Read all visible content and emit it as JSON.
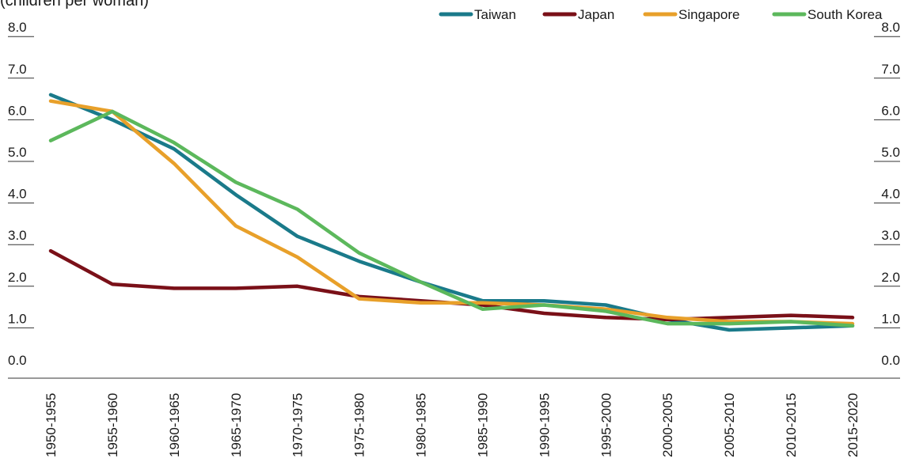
{
  "chart_data": {
    "type": "line",
    "unit_label": "(children per woman)",
    "categories": [
      "1950-1955",
      "1955-1960",
      "1960-1965",
      "1965-1970",
      "1970-1975",
      "1975-1980",
      "1980-1985",
      "1985-1990",
      "1990-1995",
      "1995-2000",
      "2000-2005",
      "2005-2010",
      "2010-2015",
      "2015-2020"
    ],
    "series": [
      {
        "name": "Taiwan",
        "color": "#1a7a8a",
        "values": [
          6.6,
          6.0,
          5.3,
          4.2,
          3.2,
          2.6,
          2.1,
          1.65,
          1.65,
          1.55,
          1.2,
          0.95,
          1.0,
          1.05
        ]
      },
      {
        "name": "Japan",
        "color": "#7a1018",
        "values": [
          2.85,
          2.05,
          1.95,
          1.95,
          2.0,
          1.75,
          1.65,
          1.55,
          1.35,
          1.25,
          1.2,
          1.25,
          1.3,
          1.25
        ]
      },
      {
        "name": "Singapore",
        "color": "#e8a02a",
        "values": [
          6.45,
          6.2,
          4.95,
          3.45,
          2.7,
          1.7,
          1.6,
          1.6,
          1.55,
          1.45,
          1.25,
          1.15,
          1.15,
          1.1
        ]
      },
      {
        "name": "South Korea",
        "color": "#5cb85c",
        "values": [
          5.5,
          6.2,
          5.45,
          4.5,
          3.85,
          2.8,
          2.1,
          1.45,
          1.55,
          1.4,
          1.1,
          1.1,
          1.15,
          1.05
        ]
      }
    ],
    "ylim": [
      0,
      8
    ],
    "yticks": [
      "0.0",
      "1.0",
      "2.0",
      "3.0",
      "4.0",
      "5.0",
      "6.0",
      "7.0",
      "8.0"
    ],
    "legend_position": "top-right",
    "grid": false
  }
}
